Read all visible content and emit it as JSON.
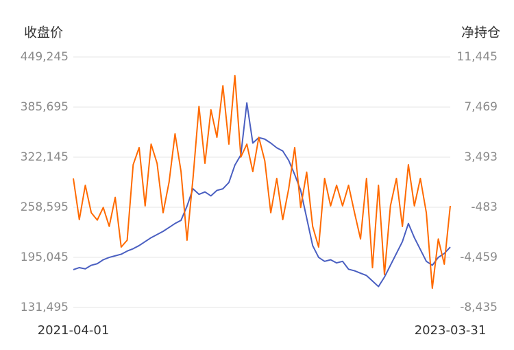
{
  "chart_data": {
    "type": "line",
    "y_label": "收盘价",
    "y2_label": "净持仓",
    "categories": [
      "2021-04-01",
      null,
      null,
      null,
      null,
      null,
      null,
      null,
      null,
      null,
      null,
      null,
      null,
      null,
      null,
      null,
      null,
      null,
      null,
      null,
      null,
      null,
      null,
      null,
      null,
      null,
      null,
      null,
      null,
      null,
      null,
      null,
      null,
      null,
      null,
      null,
      null,
      null,
      null,
      null,
      null,
      null,
      null,
      null,
      null,
      null,
      null,
      null,
      null,
      null,
      null,
      null,
      null,
      null,
      null,
      null,
      null,
      null,
      null,
      null,
      null,
      null,
      null,
      "2023-03-31"
    ],
    "series": [
      {
        "color": "#4a5fc1",
        "axis": "y",
        "values": [
          179400,
          182000,
          180500,
          185000,
          187000,
          192000,
          195000,
          197000,
          199000,
          203000,
          206000,
          210000,
          215000,
          220000,
          224000,
          228000,
          233000,
          238000,
          242000,
          260000,
          282000,
          275000,
          278000,
          273000,
          280000,
          282000,
          290000,
          312000,
          325000,
          390900,
          340000,
          347000,
          345000,
          340000,
          334000,
          330000,
          318000,
          300000,
          280000,
          245000,
          210000,
          195000,
          190000,
          192000,
          188000,
          190000,
          180000,
          178000,
          175000,
          172000,
          165000,
          158000,
          170000,
          185000,
          200000,
          215000,
          238000,
          220000,
          205000,
          190000,
          185000,
          195000,
          200000,
          208000
        ]
      },
      {
        "color": "#ff6a00",
        "axis": "y2",
        "values": [
          1804,
          -1464,
          1259,
          -920,
          -1500,
          -500,
          -2000,
          300,
          -3643,
          -3098,
          2893,
          4255,
          -375,
          4527,
          3000,
          -920,
          1500,
          5344,
          2348,
          -3098,
          1804,
          7523,
          3000,
          7251,
          5072,
          9157,
          4527,
          9974,
          3500,
          4527,
          2348,
          5072,
          3200,
          -920,
          1804,
          -1464,
          1000,
          4255,
          -500,
          2300,
          -2000,
          -3643,
          1804,
          -375,
          1259,
          -375,
          1259,
          -920,
          -3000,
          1804,
          -5277,
          1259,
          -5822,
          -375,
          1804,
          -2009,
          2893,
          -375,
          1804,
          -920,
          -6911,
          -3000,
          -5000,
          -375
        ]
      }
    ],
    "ylim": [
      131495,
      449245
    ],
    "yticks": [
      {
        "value": 131495,
        "label": "131,495"
      },
      {
        "value": 195045,
        "label": "195,045"
      },
      {
        "value": 258595,
        "label": "258,595"
      },
      {
        "value": 322145,
        "label": "322,145"
      },
      {
        "value": 385695,
        "label": "385,695"
      },
      {
        "value": 449245,
        "label": "449,245"
      }
    ],
    "y2lim": [
      -8435,
      11445
    ],
    "y2ticks": [
      {
        "value": -8435,
        "label": "-8,435"
      },
      {
        "value": -4459,
        "label": "-4,459"
      },
      -483,
      {
        "value": 3493,
        "label": "3,493"
      },
      {
        "value": 7469,
        "label": "7,469"
      },
      {
        "value": 11445,
        "label": "11,445"
      }
    ],
    "grid": true
  }
}
